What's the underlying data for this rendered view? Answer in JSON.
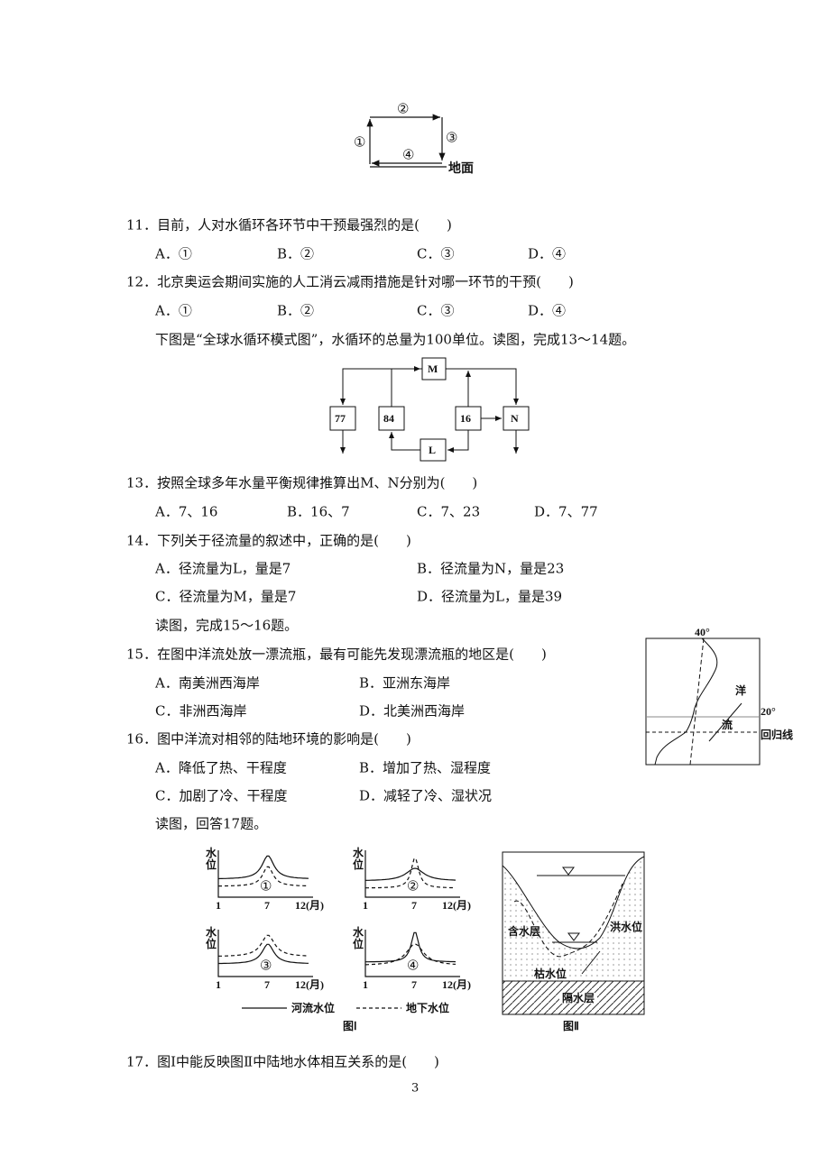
{
  "figure_1": {
    "labels": [
      "①",
      "②",
      "③",
      "④"
    ],
    "ground": "地面"
  },
  "questions": [
    {
      "stem": "11．目前，人对水循环各环节中干预最强烈的是(　　)",
      "options": [
        "A．①",
        "B．②",
        "C．③",
        "D．④"
      ]
    },
    {
      "stem": "12．北京奥运会期间实施的人工消云减雨措施是针对哪一环节的干预(　　)",
      "options": [
        "A．①",
        "B．②",
        "C．③",
        "D．④"
      ]
    },
    {
      "stem": "13．按照全球多年水量平衡规律推算出M、N分别为(　　)",
      "options": [
        "A．7、16",
        "B．16、7",
        "C．7、23",
        "D．7、77"
      ]
    },
    {
      "stem": "14．下列关于径流量的叙述中，正确的是(　　)",
      "options": [
        "A．径流量为L，量是7",
        "B．径流量为N，量是23",
        "C．径流量为M，量是7",
        "D．径流量为L，量是39"
      ]
    },
    {
      "stem": "15．在图中洋流处放一漂流瓶，最有可能先发现漂流瓶的地区是(　　)",
      "options": [
        "A．南美洲西海岸",
        "B．亚洲东海岸",
        "C．非洲西海岸",
        "D．北美洲西海岸"
      ]
    },
    {
      "stem": "16．图中洋流对相邻的陆地环境的影响是(　　)",
      "options": [
        "A．降低了热、干程度",
        "B．增加了热、湿程度",
        "C．加剧了冷、干程度",
        "D．减轻了冷、湿状况"
      ]
    },
    {
      "stem": "17．图Ⅰ中能反映图Ⅱ中陆地水体相互关系的是(　　)",
      "options": []
    }
  ],
  "intros": [
    "下图是“全球水循环模式图”，水循环的总量为100单位。读图，完成13～14题。",
    "读图，完成15～16题。",
    "读图，回答17题。"
  ],
  "cycle_diagram": {
    "boxes": [
      "M",
      "77",
      "84",
      "16",
      "N",
      "L"
    ]
  },
  "ocean_map": {
    "labels": [
      "40°",
      "洋",
      "20°",
      "流",
      "回归线"
    ]
  },
  "figure_I": {
    "graphs": [
      {
        "y_label": "水位",
        "x_ticks": [
          "1",
          "7",
          "12(月)"
        ],
        "number": "①"
      },
      {
        "y_label": "水位",
        "x_ticks": [
          "1",
          "7",
          "12(月)"
        ],
        "number": "②"
      },
      {
        "y_label": "水位",
        "x_ticks": [
          "1",
          "7",
          "12(月)"
        ],
        "number": "③"
      },
      {
        "y_label": "水位",
        "x_ticks": [
          "1",
          "7",
          "12(月)"
        ],
        "number": "④"
      }
    ],
    "legend": [
      "河流水位",
      "地下水位"
    ],
    "caption": "图Ⅰ"
  },
  "figure_II": {
    "labels": [
      "含水层",
      "洪水位",
      "枯水位",
      "隔水层"
    ],
    "caption": "图Ⅱ"
  },
  "page_number": "3"
}
